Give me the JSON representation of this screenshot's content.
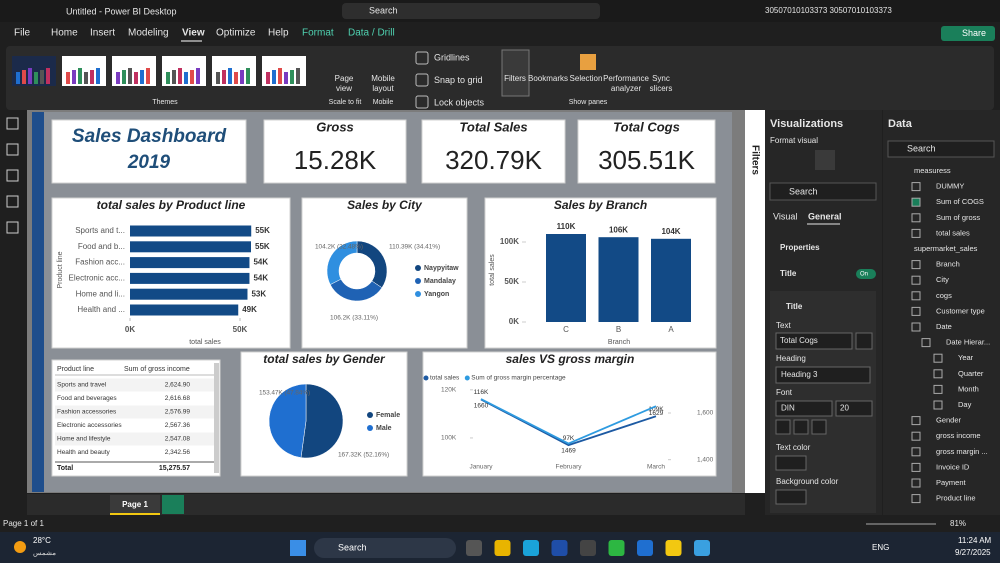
{
  "window": {
    "title": "Untitled - Power BI Desktop",
    "search": "Search",
    "user": "30507010103373 30507010103373",
    "share": "Share"
  },
  "menu": [
    "File",
    "Home",
    "Insert",
    "Modeling",
    "View",
    "Optimize",
    "Help",
    "Format",
    "Data / Drill"
  ],
  "ribbon": {
    "themes": "Themes",
    "page_view": [
      "Page",
      "view"
    ],
    "scale_to_fit": "Scale to fit",
    "mobile_layout": [
      "Mobile",
      "layout"
    ],
    "mobile": "Mobile",
    "gridlines": "Gridlines",
    "snap": "Snap to grid",
    "lock": "Lock objects",
    "filters": "Filters",
    "bookmarks": "Bookmarks",
    "selection": "Selection",
    "performance": [
      "Performance",
      "analyzer"
    ],
    "sync": [
      "Sync",
      "slicers"
    ],
    "show_panes": "Show panes"
  },
  "report": {
    "title_lines": [
      "Sales Dashboard",
      "2019"
    ],
    "cards": [
      {
        "label": "Gross",
        "value": "15.28K"
      },
      {
        "label": "Total Sales",
        "value": "320.79K"
      },
      {
        "label": "Total Cogs",
        "value": "305.51K"
      }
    ],
    "charts": [
      {
        "type": "bar",
        "horizontal": true,
        "title": "total sales by Product line",
        "x_label": "total sales",
        "y_label": "Product line",
        "color": "#124a86",
        "categories": [
          "Sports and t...",
          "Food and b...",
          "Fashion acc...",
          "Electronic acc...",
          "Home and li...",
          "Health and ..."
        ],
        "values": [
          55.1,
          55.0,
          54.3,
          54.3,
          53.4,
          49.2
        ],
        "value_labels": [
          "55K",
          "55K",
          "54K",
          "54K",
          "53K",
          "49K"
        ],
        "xlim": [
          0,
          60
        ],
        "xticks": [
          {
            "value": 0,
            "label": "0K"
          },
          {
            "value": 50,
            "label": "50K"
          }
        ]
      },
      {
        "type": "donut",
        "title": "Sales by City",
        "categories": [
          "Naypyitaw",
          "Mandalay",
          "Yangon"
        ],
        "colors": [
          "#12467f",
          "#1f62b4",
          "#2f8fe0"
        ],
        "values": [
          110.39,
          106.2,
          104.2
        ],
        "value_labels": [
          "110.39K (34.41%)",
          "106.2K (33.11%)",
          "104.2K (32.48%)"
        ]
      },
      {
        "type": "bar",
        "horizontal": false,
        "title": "Sales by Branch",
        "x_label": "Branch",
        "y_label": "total sales",
        "color": "#124a86",
        "categories": [
          "C",
          "B",
          "A"
        ],
        "values": [
          110,
          106,
          104
        ],
        "value_labels": [
          "110K",
          "106K",
          "104K"
        ],
        "ylim": [
          0,
          115
        ],
        "yticks": [
          {
            "value": 0,
            "label": "0K"
          },
          {
            "value": 50,
            "label": "50K"
          },
          {
            "value": 100,
            "label": "100K"
          }
        ]
      },
      {
        "type": "table",
        "headers": [
          "Product line",
          "Sum of gross income"
        ],
        "rows": [
          [
            "Sports and travel",
            "2,624.90"
          ],
          [
            "Food and beverages",
            "2,616.68"
          ],
          [
            "Fashion accessories",
            "2,576.99"
          ],
          [
            "Electronic accessories",
            "2,567.36"
          ],
          [
            "Home and lifestyle",
            "2,547.08"
          ],
          [
            "Health and beauty",
            "2,342.56"
          ]
        ],
        "total": [
          "Total",
          "15,275.57"
        ]
      },
      {
        "type": "pie",
        "title": "total sales by Gender",
        "categories": [
          "Female",
          "Male"
        ],
        "colors": [
          "#12467f",
          "#1f6fd0"
        ],
        "values": [
          167.32,
          153.47
        ],
        "value_labels": [
          "167.32K (52.16%)",
          "153.47K (47.84%)"
        ]
      },
      {
        "type": "line",
        "title": "sales VS gross margin",
        "categories": [
          "January",
          "February",
          "March"
        ],
        "series": [
          {
            "name": "total sales",
            "color": "#1d5aa3",
            "values": [
              116,
              97,
              109
            ],
            "value_labels": [
              "116K",
              "97K",
              "109K"
            ]
          },
          {
            "name": "Sum of gross margin percentage",
            "color": "#2e9be0",
            "axis": "y2",
            "values": [
              1660,
              1469,
              1629
            ],
            "value_labels": [
              "1660",
              "1469",
              "1629"
            ]
          }
        ],
        "ylim": [
          90,
          122
        ],
        "yticks": [
          {
            "value": 100,
            "label": "100K"
          },
          {
            "value": 120,
            "label": "120K"
          }
        ],
        "y2lim": [
          1390,
          1720
        ],
        "y2ticks": [
          {
            "value": 1400,
            "label": "1,400"
          },
          {
            "value": 1600,
            "label": "1,600"
          }
        ]
      }
    ]
  },
  "filters_pane": "Filters",
  "viz_pane": {
    "title": "Visualizations",
    "subtitle": "Format visual",
    "search": "Search",
    "tabs": [
      "Visual",
      "General"
    ],
    "properties": "Properties",
    "title_section": "Title",
    "toggle": "On",
    "sub_section": "Title",
    "text_label": "Text",
    "text_value": "Total Cogs",
    "heading_label": "Heading",
    "heading_value": "Heading 3",
    "font_label": "Font",
    "font_value": "DIN",
    "font_size": "20",
    "text_color": "Text color",
    "background_color": "Background color"
  },
  "data_pane": {
    "title": "Data",
    "search": "Search",
    "items": [
      {
        "label": "measuress"
      },
      {
        "label": "DUMMY"
      },
      {
        "label": "Sum of COGS",
        "checked": true
      },
      {
        "label": "Sum of gross"
      },
      {
        "label": "total sales"
      },
      {
        "label": "supermarket_sales"
      },
      {
        "label": "Branch"
      },
      {
        "label": "City"
      },
      {
        "label": "cogs"
      },
      {
        "label": "Customer type"
      },
      {
        "label": "Date"
      },
      {
        "label": "Date Hierar..."
      },
      {
        "label": "Year"
      },
      {
        "label": "Quarter"
      },
      {
        "label": "Month"
      },
      {
        "label": "Day"
      },
      {
        "label": "Gender"
      },
      {
        "label": "gross income"
      },
      {
        "label": "gross margin ..."
      },
      {
        "label": "Invoice ID"
      },
      {
        "label": "Payment"
      },
      {
        "label": "Product line"
      }
    ]
  },
  "page_tab": "Page 1",
  "status": {
    "page": "Page 1 of 1",
    "zoom": "81%"
  },
  "taskbar": {
    "temp": "28°C",
    "weather": "مشمس",
    "search": "Search",
    "lang": "ENG",
    "time": "11:24 AM",
    "date": "9/27/2025"
  }
}
